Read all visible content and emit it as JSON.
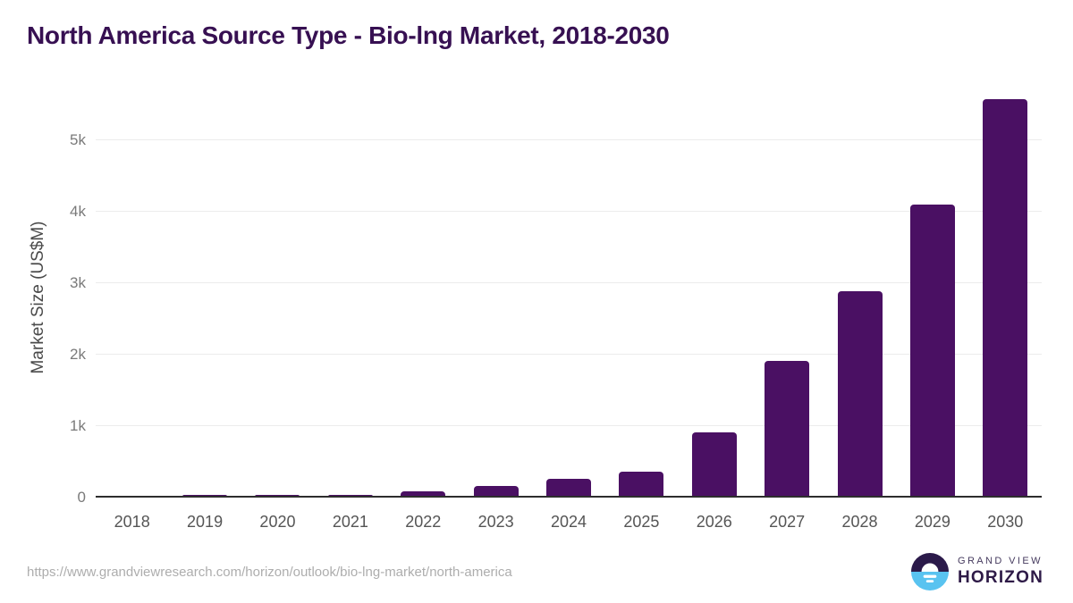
{
  "title": "North America Source Type - Bio-lng Market, 2018-2030",
  "chart_data": {
    "type": "bar",
    "title": "North America Source Type - Bio-lng Market, 2018-2030",
    "categories": [
      "2018",
      "2019",
      "2020",
      "2021",
      "2022",
      "2023",
      "2024",
      "2025",
      "2026",
      "2027",
      "2028",
      "2029",
      "2030"
    ],
    "values": [
      2,
      28,
      24,
      23,
      75,
      150,
      250,
      355,
      900,
      1900,
      2875,
      4090,
      5560
    ],
    "xlabel": "",
    "ylabel": "Market Size (US$M)",
    "ylim": [
      0,
      5712
    ],
    "yticks": [
      {
        "label": "0",
        "value": 0
      },
      {
        "label": "1k",
        "value": 1000
      },
      {
        "label": "2k",
        "value": 2000
      },
      {
        "label": "3k",
        "value": 3000
      },
      {
        "label": "4k",
        "value": 4000
      },
      {
        "label": "5k",
        "value": 5000
      }
    ],
    "grid": "horizontal",
    "legend": "none",
    "bar_color": "#4A1063"
  },
  "footer": {
    "source_url": "https://www.grandviewresearch.com/horizon/outlook/bio-lng-market/north-america",
    "logo": {
      "top_text": "GRAND VIEW",
      "bottom_text": "HORIZON"
    }
  },
  "colors": {
    "bar_purple": "#4A1063",
    "title_purple": "#371052",
    "axis_line": "#2d2d2d",
    "gridline": "#ececec",
    "tick_gray": "#7a7a7a",
    "logo_dark": "#2B1A4A",
    "logo_blue": "#59C3F0"
  }
}
